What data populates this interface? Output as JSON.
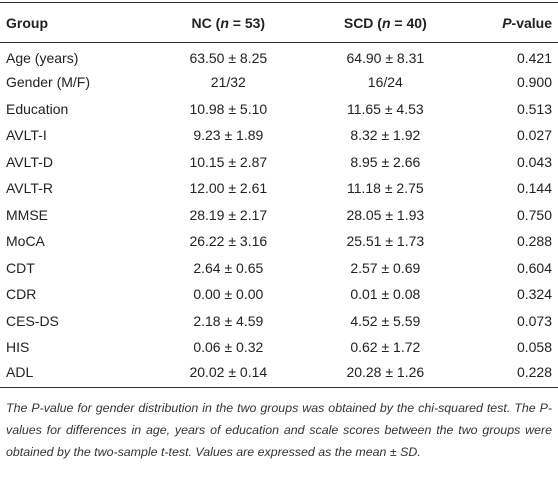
{
  "table": {
    "header": [
      {
        "parts": [
          "Group"
        ]
      },
      {
        "parts": [
          "NC (",
          "n",
          " = 53)"
        ]
      },
      {
        "parts": [
          "SCD (",
          "n",
          " = 40)"
        ]
      },
      {
        "parts": [
          "P",
          "-value"
        ]
      }
    ],
    "rows": [
      [
        "Age (years)",
        "63.50 ± 8.25",
        "64.90 ± 8.31",
        "0.421"
      ],
      [
        "Gender (M/F)",
        "21/32",
        "16/24",
        "0.900"
      ],
      [
        "Education",
        "10.98 ± 5.10",
        "11.65 ± 4.53",
        "0.513"
      ],
      [
        "AVLT-I",
        "9.23 ± 1.89",
        "8.32 ± 1.92",
        "0.027"
      ],
      [
        "AVLT-D",
        "10.15 ± 2.87",
        "8.95 ± 2.66",
        "0.043"
      ],
      [
        "AVLT-R",
        "12.00 ± 2.61",
        "11.18 ± 2.75",
        "0.144"
      ],
      [
        "MMSE",
        "28.19 ± 2.17",
        "28.05 ± 1.93",
        "0.750"
      ],
      [
        "MoCA",
        "26.22 ± 3.16",
        "25.51 ± 1.73",
        "0.288"
      ],
      [
        "CDT",
        "2.64 ± 0.65",
        "2.57 ± 0.69",
        "0.604"
      ],
      [
        "CDR",
        "0.00 ± 0.00",
        "0.01 ± 0.08",
        "0.324"
      ],
      [
        "CES-DS",
        "2.18 ± 4.59",
        "4.52 ± 5.59",
        "0.073"
      ],
      [
        "HIS",
        "0.06 ± 0.32",
        "0.62 ± 1.72",
        "0.058"
      ],
      [
        "ADL",
        "20.02 ± 0.14",
        "20.28 ± 1.26",
        "0.228"
      ]
    ],
    "footnote": "The P-value for gender distribution in the two groups was obtained by the chi-squared test. The P-values for differences in age, years of education and scale scores between the two groups were obtained by the two-sample t-test. Values are expressed as the mean ± SD."
  }
}
